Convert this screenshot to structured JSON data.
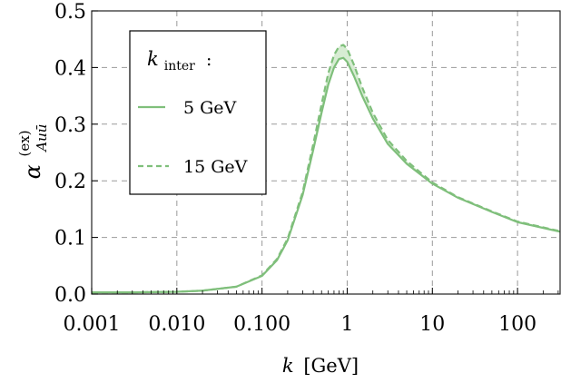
{
  "chart_data": {
    "type": "line",
    "xscale": "log",
    "xlim": [
      0.001,
      316
    ],
    "ylim": [
      0,
      0.5
    ],
    "grid": true,
    "x_tick_values": [
      0.001,
      0.01,
      0.1,
      1,
      10,
      100
    ],
    "x_tick_labels": [
      "0.001",
      "0.010",
      "0.100",
      "1",
      "10",
      "100"
    ],
    "y_tick_values": [
      0,
      0.1,
      0.2,
      0.3,
      0.4,
      0.5
    ],
    "y_tick_labels": [
      "0.0",
      "0.1",
      "0.2",
      "0.3",
      "0.4",
      "0.5"
    ],
    "xlabel_var": "k",
    "xlabel_unit": "[GeV]",
    "ylabel_base": "α",
    "ylabel_sup": "(ex)",
    "ylabel_sub": "Auū",
    "legend_title_var": "k",
    "legend_title_sub": "inter",
    "legend_title_suffix": ":",
    "legend_position": "upper-left",
    "band_between_series": true,
    "series": [
      {
        "name": "5 GeV",
        "style": "solid",
        "color": "#7fbf7b",
        "x": [
          0.001,
          0.003,
          0.01,
          0.02,
          0.05,
          0.1,
          0.15,
          0.2,
          0.3,
          0.4,
          0.5,
          0.6,
          0.7,
          0.8,
          0.9,
          1.0,
          1.2,
          1.5,
          2,
          3,
          5,
          10,
          20,
          50,
          100,
          316
        ],
        "y": [
          0.003,
          0.003,
          0.004,
          0.006,
          0.013,
          0.032,
          0.06,
          0.095,
          0.175,
          0.255,
          0.32,
          0.37,
          0.4,
          0.415,
          0.417,
          0.41,
          0.385,
          0.35,
          0.31,
          0.265,
          0.23,
          0.195,
          0.17,
          0.145,
          0.127,
          0.11
        ]
      },
      {
        "name": "15 GeV",
        "style": "dashed",
        "color": "#7fbf7b",
        "x": [
          0.001,
          0.003,
          0.01,
          0.02,
          0.05,
          0.1,
          0.15,
          0.2,
          0.3,
          0.4,
          0.5,
          0.6,
          0.7,
          0.8,
          0.9,
          1.0,
          1.2,
          1.5,
          2,
          3,
          5,
          10,
          20,
          50,
          100,
          316
        ],
        "y": [
          0.003,
          0.003,
          0.004,
          0.006,
          0.013,
          0.033,
          0.062,
          0.098,
          0.18,
          0.265,
          0.335,
          0.39,
          0.422,
          0.437,
          0.44,
          0.433,
          0.405,
          0.365,
          0.32,
          0.272,
          0.235,
          0.197,
          0.171,
          0.146,
          0.128,
          0.111
        ]
      }
    ]
  },
  "colors": {
    "series": "#7fbf7b",
    "band_fill": "#d7ecd3",
    "grid": "#9a9a9a",
    "frame": "#222222"
  }
}
